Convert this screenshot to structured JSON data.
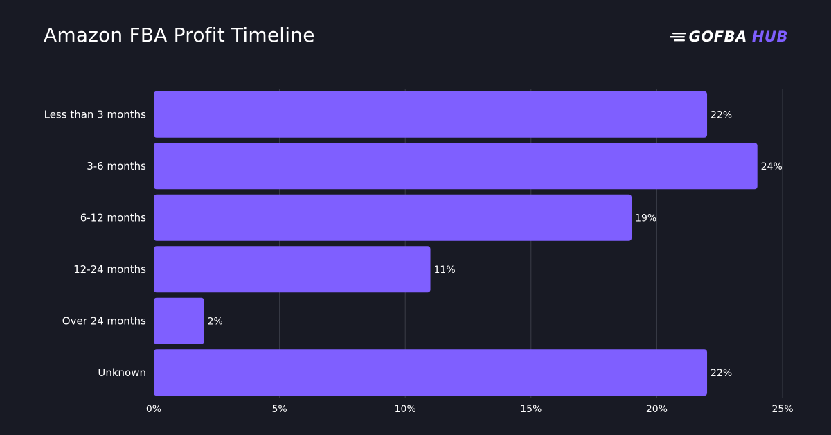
{
  "header": {
    "title": "Amazon FBA Profit Timeline",
    "logo_text_a": "GOFBA",
    "logo_text_b": "HUB"
  },
  "colors": {
    "background": "#181a24",
    "bar": "#7f5fff",
    "grid": "#3a3d48",
    "brand_accent": "#7f5fff"
  },
  "chart_data": {
    "type": "bar",
    "orientation": "horizontal",
    "title": "Amazon FBA Profit Timeline",
    "categories": [
      "Less than 3 months",
      "3-6 months",
      "6-12 months",
      "12-24 months",
      "Over 24 months",
      "Unknown"
    ],
    "values": [
      22,
      24,
      19,
      11,
      2,
      22
    ],
    "value_labels": [
      "22%",
      "24%",
      "19%",
      "11%",
      "2%",
      "22%"
    ],
    "xlim": [
      0,
      25
    ],
    "xticks": [
      0,
      5,
      10,
      15,
      20,
      25
    ],
    "xtick_labels": [
      "0%",
      "5%",
      "10%",
      "15%",
      "20%",
      "25%"
    ],
    "grid": "vertical",
    "legend": "none"
  }
}
